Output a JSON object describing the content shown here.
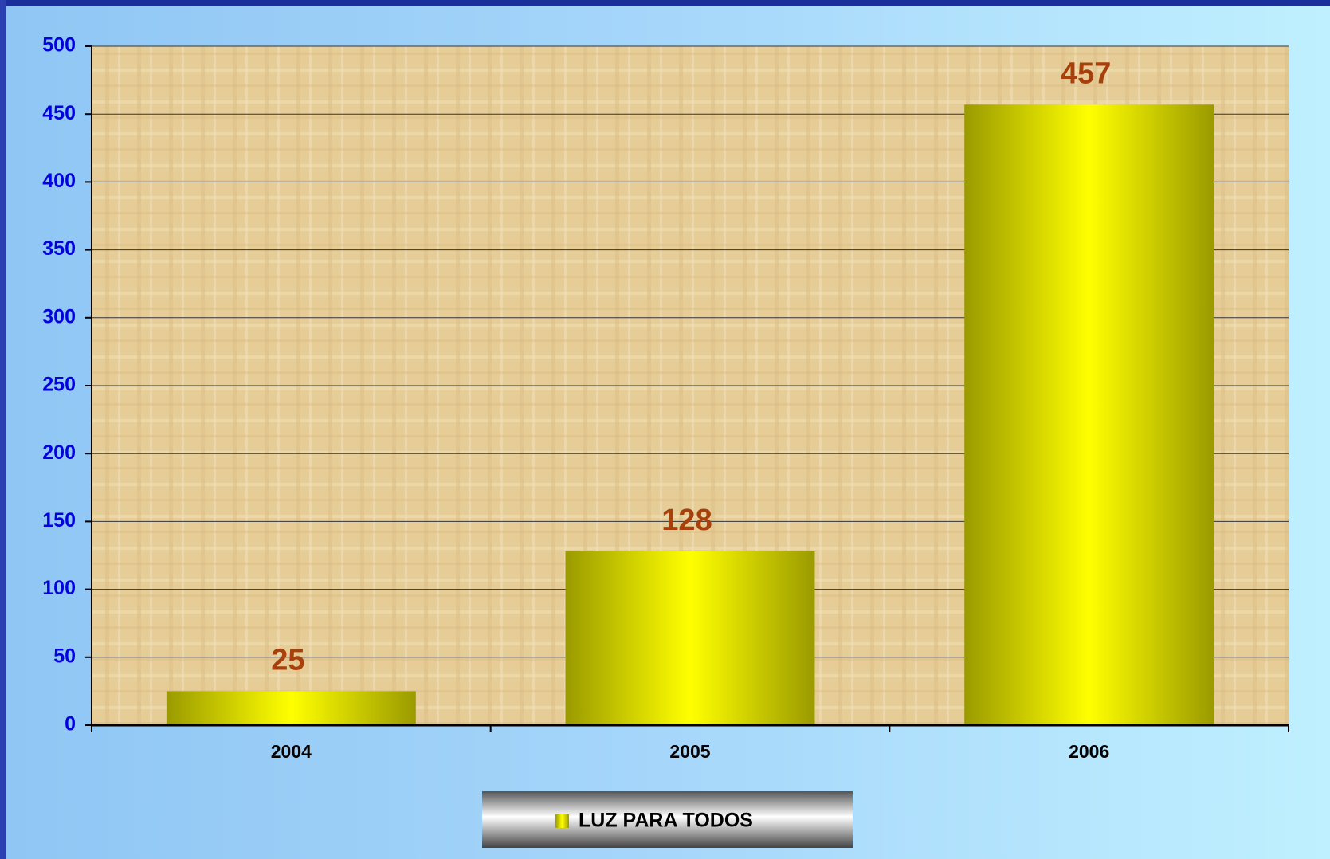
{
  "chart_data": {
    "type": "bar",
    "categories": [
      "2004",
      "2005",
      "2006"
    ],
    "series": [
      {
        "name": "LUZ PARA TODOS",
        "color": "#ffff00",
        "values": [
          25,
          128,
          457
        ]
      }
    ],
    "ylim": [
      0,
      500
    ],
    "yticks": [
      0,
      50,
      100,
      150,
      200,
      250,
      300,
      350,
      400,
      450,
      500
    ],
    "grid": true,
    "legend": "bottom"
  }
}
